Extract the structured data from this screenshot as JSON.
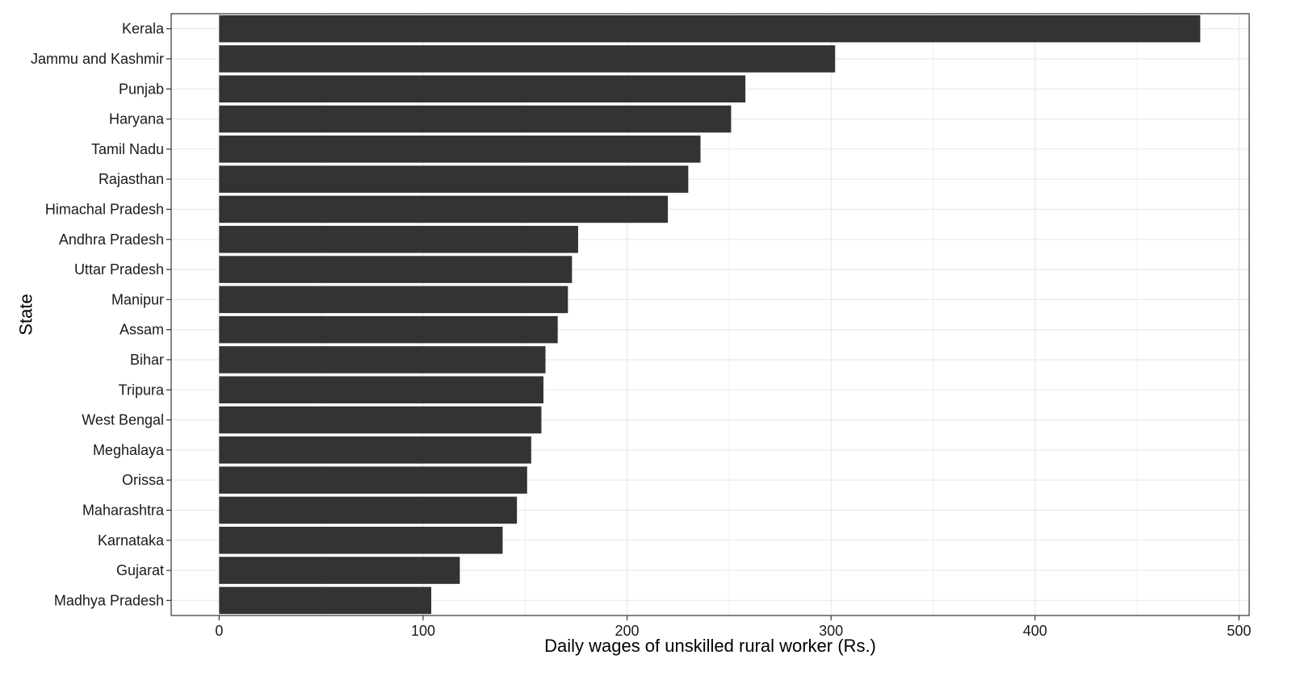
{
  "chart_data": {
    "type": "bar",
    "orientation": "horizontal",
    "title": "",
    "xlabel": "Daily wages of unskilled rural worker (Rs.)",
    "ylabel": "State",
    "categories": [
      "Kerala",
      "Jammu and Kashmir",
      "Punjab",
      "Haryana",
      "Tamil Nadu",
      "Rajasthan",
      "Himachal Pradesh",
      "Andhra Pradesh",
      "Uttar Pradesh",
      "Manipur",
      "Assam",
      "Bihar",
      "Tripura",
      "West Bengal",
      "Meghalaya",
      "Orissa",
      "Maharashtra",
      "Karnataka",
      "Gujarat",
      "Madhya Pradesh"
    ],
    "values": [
      481,
      302,
      258,
      251,
      236,
      230,
      220,
      176,
      173,
      171,
      166,
      160,
      159,
      158,
      153,
      151,
      146,
      139,
      118,
      104
    ],
    "xlim": [
      -23.5,
      505
    ],
    "xticks": [
      0,
      100,
      200,
      300,
      400,
      500
    ],
    "grid": true,
    "legend": "none",
    "colors": {
      "bar": "#333333",
      "grid": "#ebebeb",
      "panel_border": "#333333"
    }
  }
}
